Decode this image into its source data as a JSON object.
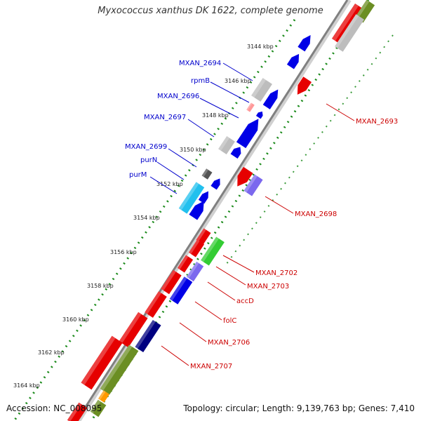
{
  "title": "Myxococcus xanthus DK 1622, complete genome",
  "footer": {
    "accession": "Accession: NC_008095",
    "topology": "Topology: circular; Length: 9,139,763 bp; Genes: 7,410"
  },
  "colors": {
    "backbone": "#808080",
    "forward_gene": "#0000e6",
    "reverse_gene": "#e60000",
    "rrna_gray": "#bdbdbd",
    "dots": "#1a8a1a",
    "label_forward": "#0000cc",
    "label_reverse": "#cc0000"
  },
  "ticks": [
    {
      "label": "3144 kbp"
    },
    {
      "label": "3146 kbp"
    },
    {
      "label": "3148 kbp"
    },
    {
      "label": "3150 kbp"
    },
    {
      "label": "3152 kbp"
    },
    {
      "label": "3154 kbp"
    },
    {
      "label": "3156 kbp"
    },
    {
      "label": "3158 kbp"
    },
    {
      "label": "3160 kbp"
    },
    {
      "label": "3162 kbp"
    },
    {
      "label": "3164 kbp"
    }
  ],
  "labels_forward": [
    {
      "name": "MXAN_2694"
    },
    {
      "name": "rpmB"
    },
    {
      "name": "MXAN_2696"
    },
    {
      "name": "MXAN_2697"
    },
    {
      "name": "MXAN_2699"
    },
    {
      "name": "purN"
    },
    {
      "name": "purM"
    }
  ],
  "labels_reverse": [
    {
      "name": "MXAN_2693"
    },
    {
      "name": "MXAN_2698"
    },
    {
      "name": "MXAN_2702"
    },
    {
      "name": "MXAN_2703"
    },
    {
      "name": "accD"
    },
    {
      "name": "folC"
    },
    {
      "name": "MXAN_2706"
    },
    {
      "name": "MXAN_2707"
    }
  ]
}
